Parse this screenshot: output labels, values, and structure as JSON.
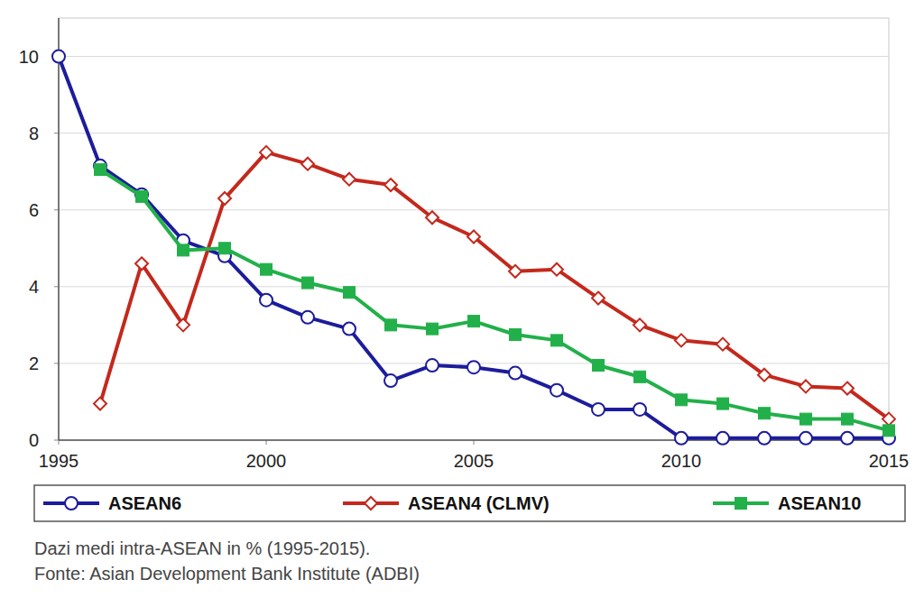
{
  "chart_data": {
    "type": "line",
    "title": "Dazi medi intra-ASEAN in % (1995-2015).",
    "source": "Fonte: Asian Development Bank Institute (ADBI)",
    "x": [
      1995,
      1996,
      1997,
      1998,
      1999,
      2000,
      2001,
      2002,
      2003,
      2004,
      2005,
      2006,
      2007,
      2008,
      2009,
      2010,
      2011,
      2012,
      2013,
      2014,
      2015
    ],
    "xlim": [
      1995,
      2015
    ],
    "xticks": [
      1995,
      2000,
      2005,
      2010,
      2015
    ],
    "ylim": [
      0,
      11
    ],
    "yticks": [
      0,
      2,
      4,
      6,
      8,
      10
    ],
    "grid": true,
    "legend": "bottom",
    "series": [
      {
        "name": "ASEAN6",
        "color": "#1c1c9c",
        "marker": "circle",
        "line_style": "solid",
        "values": [
          10,
          7.15,
          6.4,
          5.2,
          4.8,
          3.65,
          3.2,
          2.9,
          1.55,
          1.95,
          1.9,
          1.75,
          1.3,
          0.8,
          0.8,
          0.05,
          0.05,
          0.05,
          0.05,
          0.05,
          0.05
        ]
      },
      {
        "name": "ASEAN4 (CLMV)",
        "color": "#c4281c",
        "marker": "diamond",
        "line_style": "solid",
        "values": [
          null,
          0.95,
          4.6,
          3.0,
          6.3,
          7.5,
          7.2,
          6.8,
          6.65,
          5.8,
          5.3,
          4.4,
          4.45,
          3.7,
          3.0,
          2.6,
          2.5,
          1.7,
          1.4,
          1.35,
          0.55
        ]
      },
      {
        "name": "ASEAN10",
        "color": "#22b04a",
        "marker": "square",
        "line_style": "solid",
        "values": [
          null,
          7.05,
          6.35,
          4.95,
          5.0,
          4.45,
          4.1,
          3.85,
          3.0,
          2.9,
          3.1,
          2.75,
          2.6,
          1.95,
          1.65,
          1.05,
          0.95,
          0.7,
          0.55,
          0.55,
          0.25
        ]
      }
    ]
  }
}
